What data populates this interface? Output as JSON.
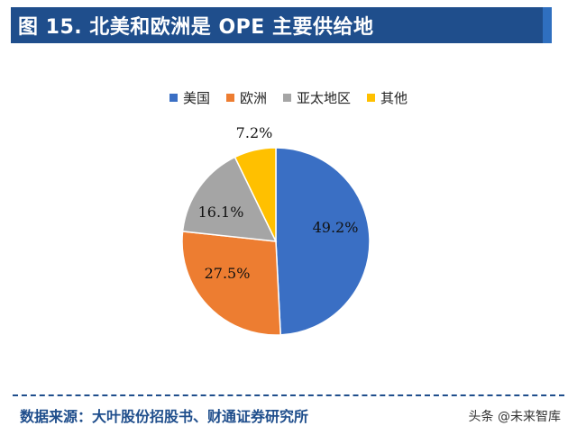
{
  "title": "图 15. 北美和欧洲是 OPE 主要供给地",
  "source": "数据来源：大叶股份招股书、财通证券研究所",
  "watermark": "头条 @未来智库",
  "chart_data": {
    "type": "pie",
    "title": "",
    "legend_position": "top",
    "slices": [
      {
        "label": "美国",
        "value": 49.2,
        "display": "49.2%",
        "color": "#3a6fc4"
      },
      {
        "label": "欧洲",
        "value": 27.5,
        "display": "27.5%",
        "color": "#ed7d31"
      },
      {
        "label": "亚太地区",
        "value": 16.1,
        "display": "16.1%",
        "color": "#a5a5a5"
      },
      {
        "label": "其他",
        "value": 7.2,
        "display": "7.2%",
        "color": "#ffc000"
      }
    ]
  }
}
